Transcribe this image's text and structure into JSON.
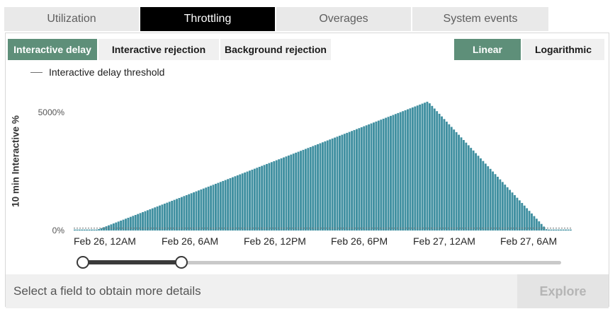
{
  "top_tabs": [
    {
      "label": "Utilization",
      "active": false
    },
    {
      "label": "Throttling",
      "active": true
    },
    {
      "label": "Overages",
      "active": false
    },
    {
      "label": "System events",
      "active": false
    }
  ],
  "metric_tabs": [
    {
      "label": "Interactive delay",
      "active": true
    },
    {
      "label": "Interactive rejection",
      "active": false
    },
    {
      "label": "Background rejection",
      "active": false
    }
  ],
  "scale_tabs": [
    {
      "label": "Linear",
      "active": true
    },
    {
      "label": "Logarithmic",
      "active": false
    }
  ],
  "legend": {
    "label": "Interactive delay threshold"
  },
  "bottom_bar": {
    "message": "Select a field to obtain more details",
    "explore_label": "Explore"
  },
  "colors": {
    "accent": "#5e8f79",
    "bar": "#3f8fa0",
    "threshold": "#707070"
  },
  "chart_data": {
    "type": "bar",
    "ylabel": "10 min Interactive %",
    "yticks": [
      "0%",
      "5000%"
    ],
    "ylim": [
      0,
      5000
    ],
    "x_tick_labels": [
      "Feb 26, 12AM",
      "Feb 26, 6AM",
      "Feb 26, 12PM",
      "Feb 26, 6PM",
      "Feb 27, 12AM",
      "Feb 27, 6AM"
    ],
    "x_range_hours": [
      -1.0,
      33.1
    ],
    "bucket_minutes": 10,
    "series": [
      {
        "name": "10 min Interactive %",
        "shape": "ramp",
        "start_hour": 0.5,
        "peak_hour": 23.3,
        "peak_value": 5400,
        "end_hour": 31.5,
        "baseline_value": 40
      },
      {
        "name": "Interactive delay threshold",
        "value": 100
      }
    ],
    "range_slider": {
      "start_fraction": 0.0,
      "end_fraction": 0.205
    }
  }
}
